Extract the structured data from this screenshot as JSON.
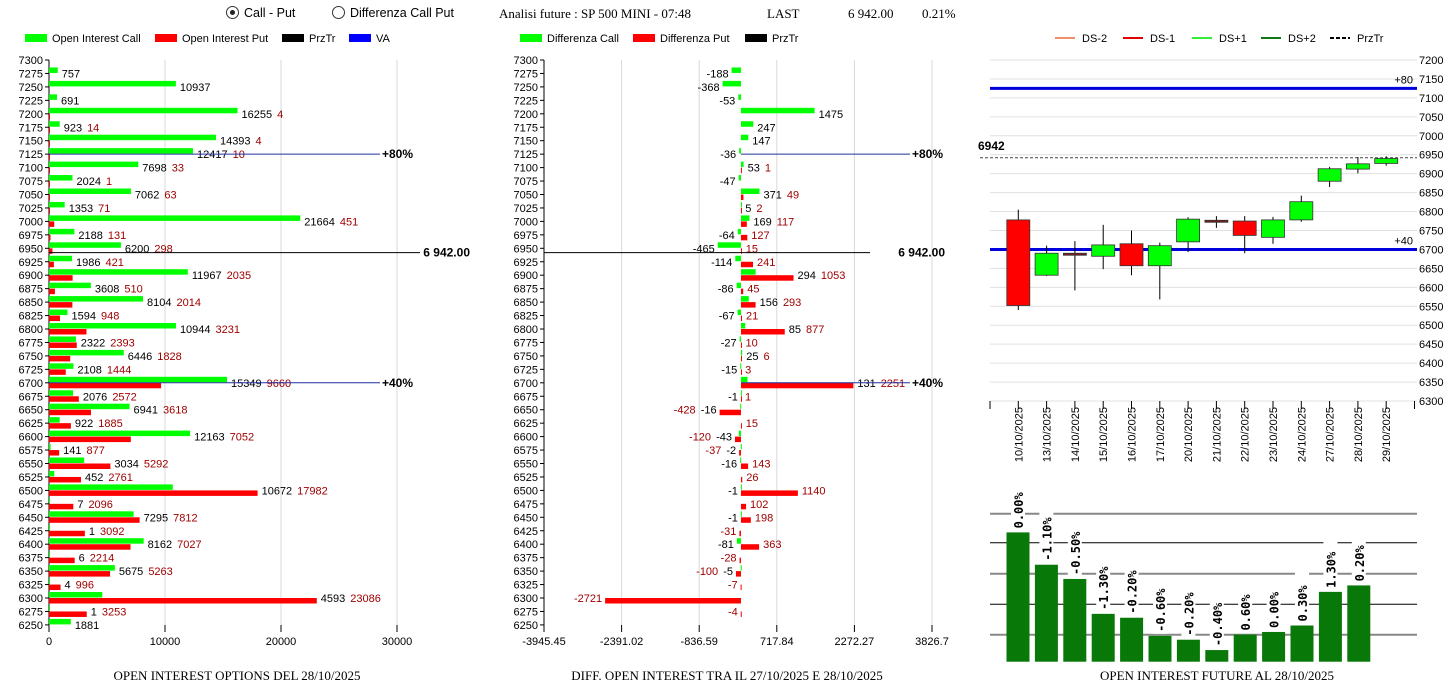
{
  "header": {
    "radio_call_put": "Call - Put",
    "radio_diff": "Differenza Call Put",
    "selected": "call_put",
    "title": "Analisi future : SP 500 MINI - 07:48",
    "last_label": "LAST",
    "last_value": "6 942.00",
    "change": "0.21%"
  },
  "chart_data": [
    {
      "type": "bar",
      "orientation": "horizontal",
      "title": "OPEN INTEREST OPTIONS DEL 28/10/2025",
      "legend": [
        {
          "name": "Open Interest Call",
          "color": "#00ff00"
        },
        {
          "name": "Open Interest Put",
          "color": "#ff0000"
        },
        {
          "name": "PrzTr",
          "color": "#000000"
        },
        {
          "name": "VA",
          "color": "#0000ff"
        }
      ],
      "categories": [
        7300,
        7275,
        7250,
        7225,
        7200,
        7175,
        7150,
        7125,
        7100,
        7075,
        7050,
        7025,
        7000,
        6975,
        6950,
        6925,
        6900,
        6875,
        6850,
        6825,
        6800,
        6775,
        6750,
        6725,
        6700,
        6675,
        6650,
        6625,
        6600,
        6575,
        6550,
        6525,
        6500,
        6475,
        6450,
        6425,
        6400,
        6375,
        6350,
        6325,
        6300,
        6275,
        6250
      ],
      "series": [
        {
          "name": "Open Interest Call",
          "values": [
            null,
            757,
            10937,
            691,
            16255,
            923,
            14393,
            12417,
            7698,
            2024,
            7062,
            1353,
            21664,
            2188,
            6200,
            1986,
            11967,
            3608,
            8104,
            1594,
            10944,
            2322,
            6446,
            2108,
            15349,
            2076,
            6941,
            922,
            12163,
            141,
            3034,
            452,
            10672,
            7,
            7295,
            1,
            8162,
            6,
            5675,
            4,
            4593,
            1,
            1881
          ]
        },
        {
          "name": "Open Interest Put",
          "values": [
            null,
            null,
            null,
            null,
            4,
            14,
            4,
            10,
            33,
            1,
            63,
            71,
            451,
            131,
            298,
            421,
            2035,
            510,
            2014,
            948,
            3231,
            2393,
            1828,
            1444,
            9660,
            2572,
            3618,
            1885,
            7052,
            877,
            5292,
            2761,
            17982,
            2096,
            7812,
            3092,
            7027,
            2214,
            5263,
            996,
            23086,
            3253,
            null
          ]
        }
      ],
      "xlim": [
        0,
        30000
      ],
      "xticks": [
        "0",
        "10000",
        "20000",
        "30000"
      ],
      "reference_lines": [
        {
          "name": "PrzTr",
          "value": 6942,
          "label": "6 942.00"
        },
        {
          "name": "VA",
          "value": 7125,
          "label": "+80%"
        },
        {
          "name": "VA",
          "value": 6700,
          "label": "+40%"
        }
      ]
    },
    {
      "type": "bar",
      "orientation": "horizontal",
      "title": "DIFF. OPEN INTEREST TRA IL 27/10/2025 E 28/10/2025",
      "legend": [
        {
          "name": "Differenza Call",
          "color": "#00ff00"
        },
        {
          "name": "Differenza Put",
          "color": "#ff0000"
        },
        {
          "name": "PrzTr",
          "color": "#000000"
        }
      ],
      "categories": [
        7300,
        7275,
        7250,
        7225,
        7200,
        7175,
        7150,
        7125,
        7100,
        7075,
        7050,
        7025,
        7000,
        6975,
        6950,
        6925,
        6900,
        6875,
        6850,
        6825,
        6800,
        6775,
        6750,
        6725,
        6700,
        6675,
        6650,
        6625,
        6600,
        6575,
        6550,
        6525,
        6500,
        6475,
        6450,
        6425,
        6400,
        6375,
        6350,
        6325,
        6300,
        6275,
        6250
      ],
      "series": [
        {
          "name": "Differenza Call",
          "values": [
            null,
            -188,
            -368,
            -53,
            1475,
            247,
            147,
            -36,
            53,
            -47,
            371,
            5,
            169,
            -64,
            -465,
            -114,
            294,
            -86,
            156,
            -67,
            85,
            -27,
            25,
            -15,
            131,
            -1,
            -16,
            null,
            -43,
            -2,
            -16,
            null,
            -1,
            null,
            -1,
            null,
            -81,
            null,
            -5,
            null,
            null,
            null,
            null
          ]
        },
        {
          "name": "Differenza Put",
          "values": [
            null,
            null,
            null,
            null,
            null,
            null,
            null,
            null,
            1,
            null,
            49,
            2,
            117,
            127,
            15,
            241,
            1053,
            45,
            293,
            21,
            877,
            10,
            6,
            3,
            2251,
            1,
            -428,
            15,
            -120,
            -37,
            143,
            26,
            1140,
            102,
            198,
            -31,
            363,
            -28,
            -100,
            -7,
            -2721,
            -4,
            null
          ]
        }
      ],
      "xlim": [
        -3945.45,
        3826.7
      ],
      "xticks": [
        "-3945.45",
        "-2391.02",
        "-836.59",
        "717.84",
        "2272.27",
        "3826.7"
      ],
      "reference_lines": [
        {
          "name": "PrzTr",
          "value": 6942,
          "label": "6 942.00"
        },
        {
          "name": "VA",
          "value": 7125,
          "label": "+80%"
        },
        {
          "name": "VA",
          "value": 6700,
          "label": "+40%"
        }
      ]
    },
    {
      "type": "candlestick",
      "legend": [
        {
          "name": "DS-2",
          "color": "#f0906a"
        },
        {
          "name": "DS-1",
          "color": "#e00000"
        },
        {
          "name": "DS+1",
          "color": "#33ee33"
        },
        {
          "name": "DS+2",
          "color": "#117711"
        },
        {
          "name": "PrzTr",
          "color": "#000000",
          "dashed": true
        }
      ],
      "ylim": [
        6300,
        7200
      ],
      "yticks": [
        "7200",
        "7150",
        "7100",
        "7050",
        "7000",
        "6950",
        "6900",
        "6850",
        "6800",
        "6750",
        "6700",
        "6650",
        "6600",
        "6550",
        "6500",
        "6450",
        "6400",
        "6350",
        "6300"
      ],
      "categories": [
        "10/10/2025",
        "13/10/2025",
        "14/10/2025",
        "15/10/2025",
        "16/10/2025",
        "17/10/2025",
        "20/10/2025",
        "21/10/2025",
        "22/10/2025",
        "23/10/2025",
        "24/10/2025",
        "27/10/2025",
        "28/10/2025",
        "29/10/2025"
      ],
      "ohlc": [
        [
          6778,
          6805,
          6540,
          6552
        ],
        [
          6632,
          6710,
          6630,
          6690
        ],
        [
          6690,
          6722,
          6592,
          6685
        ],
        [
          6682,
          6765,
          6648,
          6712
        ],
        [
          6715,
          6750,
          6632,
          6657
        ],
        [
          6657,
          6718,
          6568,
          6710
        ],
        [
          6720,
          6785,
          6693,
          6780
        ],
        [
          6777,
          6788,
          6757,
          6772
        ],
        [
          6775,
          6788,
          6690,
          6737
        ],
        [
          6732,
          6786,
          6715,
          6778
        ],
        [
          6778,
          6842,
          6773,
          6826
        ],
        [
          6880,
          6918,
          6865,
          6913
        ],
        [
          6912,
          6944,
          6901,
          6926
        ],
        [
          6927,
          6946,
          6921,
          6940
        ]
      ],
      "reference_lines": [
        {
          "name": "PrzTr",
          "value": 6942,
          "label": "6942"
        },
        {
          "name": "VA",
          "value": 7125,
          "label": "+80"
        },
        {
          "name": "VA",
          "value": 6700,
          "label": "+40"
        }
      ],
      "colors": {
        "up": "#00ff00",
        "down": "#ff0000",
        "doji": "#7a1a1a",
        "va": "#0000dd"
      }
    },
    {
      "type": "bar",
      "title": "OPEN INTEREST FUTURE AL 28/10/2025",
      "y_axis_labels": false,
      "relative_values": [
        100,
        75,
        64,
        37,
        34,
        20,
        17,
        9,
        21,
        23,
        28,
        54,
        59
      ],
      "labels": [
        "0.00%",
        "-1.10%",
        "-0.50%",
        "-1.30%",
        "-0.20%",
        "-0.60%",
        "-0.20%",
        "-0.40%",
        "0.60%",
        "0.00%",
        "0.30%",
        "1.30%",
        "0.20%"
      ],
      "color": "#087808"
    }
  ]
}
